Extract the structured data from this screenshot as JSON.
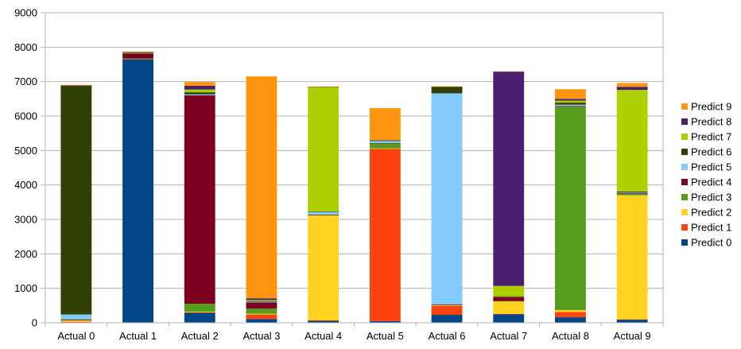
{
  "chart_data": {
    "type": "bar",
    "stacked": true,
    "title": "",
    "xlabel": "",
    "ylabel": "",
    "ylim": [
      0,
      9000
    ],
    "yticks": [
      0,
      1000,
      2000,
      3000,
      4000,
      5000,
      6000,
      7000,
      8000,
      9000
    ],
    "grid": true,
    "legend_position": "right",
    "categories": [
      "Actual 0",
      "Actual 1",
      "Actual 2",
      "Actual 3",
      "Actual 4",
      "Actual 5",
      "Actual 6",
      "Actual 7",
      "Actual 8",
      "Actual 9"
    ],
    "series": [
      {
        "name": "Predict 0",
        "color": "#004586",
        "values": [
          10,
          7650,
          290,
          110,
          60,
          50,
          230,
          250,
          160,
          90
        ]
      },
      {
        "name": "Predict 1",
        "color": "#ff420e",
        "values": [
          20,
          10,
          10,
          130,
          10,
          5000,
          260,
          10,
          150,
          10
        ]
      },
      {
        "name": "Predict 2",
        "color": "#ffd320",
        "values": [
          40,
          10,
          20,
          20,
          3050,
          10,
          20,
          360,
          60,
          3600
        ]
      },
      {
        "name": "Predict 3",
        "color": "#579d1c",
        "values": [
          10,
          5,
          230,
          150,
          10,
          150,
          10,
          10,
          5900,
          40
        ]
      },
      {
        "name": "Predict 4",
        "color": "#7e0021",
        "values": [
          20,
          150,
          6050,
          180,
          10,
          10,
          10,
          120,
          20,
          20
        ]
      },
      {
        "name": "Predict 5",
        "color": "#83caff",
        "values": [
          140,
          5,
          30,
          20,
          80,
          60,
          6130,
          10,
          40,
          20
        ]
      },
      {
        "name": "Predict 6",
        "color": "#314004",
        "values": [
          6650,
          10,
          60,
          20,
          10,
          10,
          190,
          10,
          60,
          30
        ]
      },
      {
        "name": "Predict 7",
        "color": "#aecf00",
        "values": [
          5,
          10,
          80,
          30,
          3610,
          10,
          5,
          300,
          60,
          2950
        ]
      },
      {
        "name": "Predict 8",
        "color": "#4b1f6f",
        "values": [
          5,
          10,
          110,
          50,
          10,
          10,
          5,
          6220,
          50,
          90
        ]
      },
      {
        "name": "Predict 9",
        "color": "#ff950e",
        "values": [
          5,
          10,
          110,
          6440,
          10,
          920,
          5,
          10,
          280,
          110
        ]
      }
    ]
  }
}
